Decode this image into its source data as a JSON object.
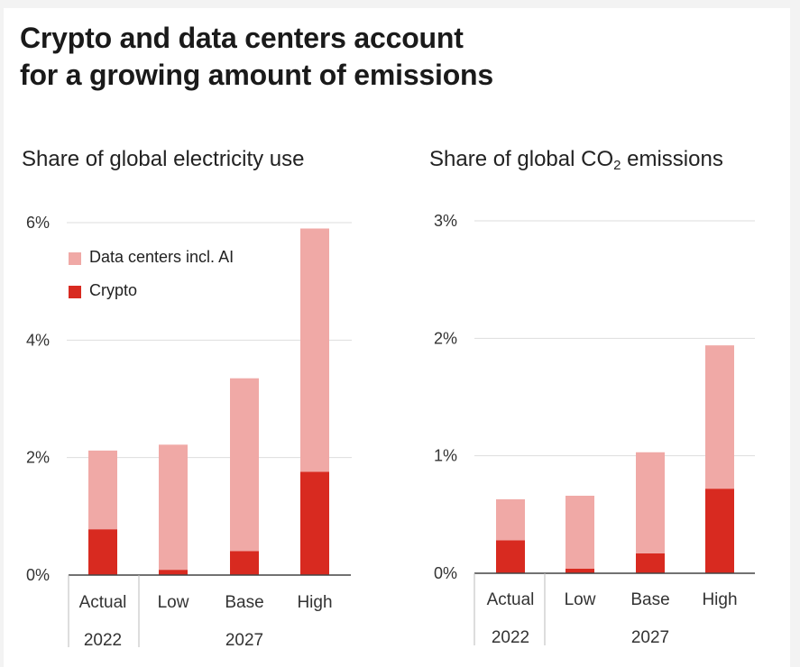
{
  "title_line1": "Crypto and data centers account",
  "title_line2": "for a growing amount of emissions",
  "colors": {
    "data_centers": "#f0a9a6",
    "crypto": "#d82a20",
    "grid": "#dddddd",
    "axis": "#444444",
    "divider": "#bbbbbb"
  },
  "chart_data": [
    {
      "type": "bar",
      "stacked": true,
      "title": "Share of global electricity use",
      "categories": [
        "Actual",
        "Low",
        "Base",
        "High"
      ],
      "group_labels": [
        "2022",
        "2027"
      ],
      "yticks": [
        "0%",
        "2%",
        "4%",
        "6%"
      ],
      "ylim": [
        0,
        6
      ],
      "series": [
        {
          "name": "Crypto",
          "values": [
            0.78,
            0.09,
            0.41,
            1.76
          ]
        },
        {
          "name": "Data centers incl. AI",
          "values": [
            1.34,
            2.13,
            2.94,
            4.14
          ]
        }
      ],
      "legend": {
        "position": "top-left",
        "items": [
          "Data centers incl. AI",
          "Crypto"
        ]
      },
      "grid": true
    },
    {
      "type": "bar",
      "stacked": true,
      "title_main": "Share of global CO",
      "title_sub": "2",
      "title_end": " emissions",
      "categories": [
        "Actual",
        "Low",
        "Base",
        "High"
      ],
      "group_labels": [
        "2022",
        "2027"
      ],
      "yticks": [
        "0%",
        "1%",
        "2%",
        "3%"
      ],
      "ylim": [
        0,
        3
      ],
      "series": [
        {
          "name": "Crypto",
          "values": [
            0.28,
            0.04,
            0.17,
            0.72
          ]
        },
        {
          "name": "Data centers incl. AI",
          "values": [
            0.35,
            0.62,
            0.86,
            1.22
          ]
        }
      ],
      "grid": true
    }
  ]
}
